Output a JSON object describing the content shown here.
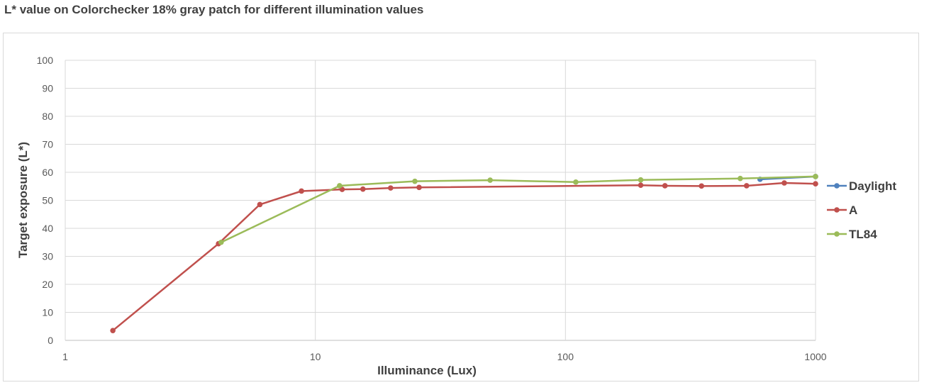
{
  "chart_data": {
    "type": "line",
    "title": "L* value on Colorchecker 18% gray patch for different illumination values",
    "xlabel": "Illuminance (Lux)",
    "ylabel": "Target exposure (L*)",
    "xscale": "log",
    "xlim": [
      1,
      1000
    ],
    "ylim": [
      0,
      100
    ],
    "x_ticks": [
      1,
      10,
      100,
      1000
    ],
    "y_ticks": [
      0,
      10,
      20,
      30,
      40,
      50,
      60,
      70,
      80,
      90,
      100
    ],
    "grid": true,
    "legend_position": "right",
    "series": [
      {
        "name": "Daylight",
        "color": "#4f81bd",
        "points": [
          [
            600,
            57.5
          ],
          [
            1000,
            58.5
          ]
        ]
      },
      {
        "name": "A",
        "color": "#c0504d",
        "points": [
          [
            1.55,
            3.5
          ],
          [
            4.1,
            34.5
          ],
          [
            6.0,
            48.5
          ],
          [
            8.8,
            53.3
          ],
          [
            12.8,
            53.9
          ],
          [
            15.5,
            54.0
          ],
          [
            20,
            54.4
          ],
          [
            26,
            54.6
          ],
          [
            200,
            55.4
          ],
          [
            250,
            55.2
          ],
          [
            350,
            55.1
          ],
          [
            530,
            55.2
          ],
          [
            750,
            56.2
          ],
          [
            1000,
            55.9
          ]
        ]
      },
      {
        "name": "TL84",
        "color": "#9bbb59",
        "points": [
          [
            4.2,
            35.0
          ],
          [
            12.5,
            55.2
          ],
          [
            25,
            56.8
          ],
          [
            50,
            57.2
          ],
          [
            110,
            56.5
          ],
          [
            200,
            57.3
          ],
          [
            500,
            57.8
          ],
          [
            1000,
            58.5
          ]
        ]
      }
    ]
  }
}
